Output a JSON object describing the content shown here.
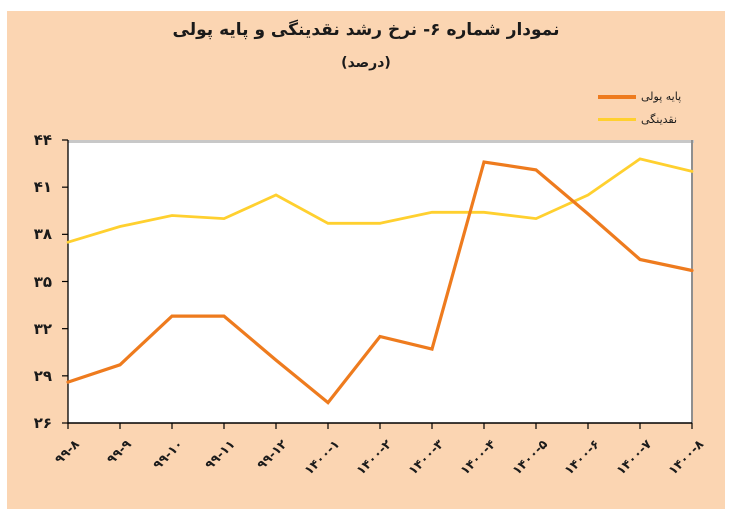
{
  "header": {
    "title": "نمودار شماره ۶- نرخ رشد نقدینگی و پایه پولی",
    "subtitle": "(درصد)"
  },
  "colors": {
    "panel_bg": "#FBD5B2",
    "plot_bg": "#FFFFFF",
    "axis": "#000000",
    "top_border": "#C8C8C8",
    "right_border": "#8F8F8F",
    "text": "#1b1b1b"
  },
  "chart_data": {
    "type": "line",
    "title": "نمودار شماره ۶- نرخ رشد نقدینگی و پایه پولی",
    "subtitle": "(درصد)",
    "categories": [
      "۹۹-۸",
      "۹۹-۹",
      "۹۹-۱۰",
      "۹۹-۱۱",
      "۹۹-۱۲",
      "۱۴۰۰-۱",
      "۱۴۰۰-۲",
      "۱۴۰۰-۳",
      "۱۴۰۰-۴",
      "۱۴۰۰-۵",
      "۱۴۰۰-۶",
      "۱۴۰۰-۷",
      "۱۴۰۰-۸"
    ],
    "series": [
      {
        "name": "پایه پولی",
        "color": "#EE7B1E",
        "values": [
          28.6,
          29.7,
          32.8,
          32.8,
          30.0,
          27.3,
          31.5,
          30.7,
          42.6,
          42.1,
          39.3,
          36.4,
          35.7
        ]
      },
      {
        "name": "نقدینگی",
        "color": "#FFD02F",
        "values": [
          37.5,
          38.5,
          39.2,
          39.0,
          40.5,
          38.7,
          38.7,
          39.4,
          39.4,
          39.0,
          40.5,
          42.8,
          42.0
        ]
      }
    ],
    "ylim": [
      26,
      44
    ],
    "ytick_step": 3,
    "ytick_labels": [
      "۴۴",
      "۴۱",
      "۳۸",
      "۳۵",
      "۳۲",
      "۲۹",
      "۲۶"
    ],
    "grid": false,
    "legend_position": "top-right",
    "xlabel": "",
    "ylabel": ""
  }
}
